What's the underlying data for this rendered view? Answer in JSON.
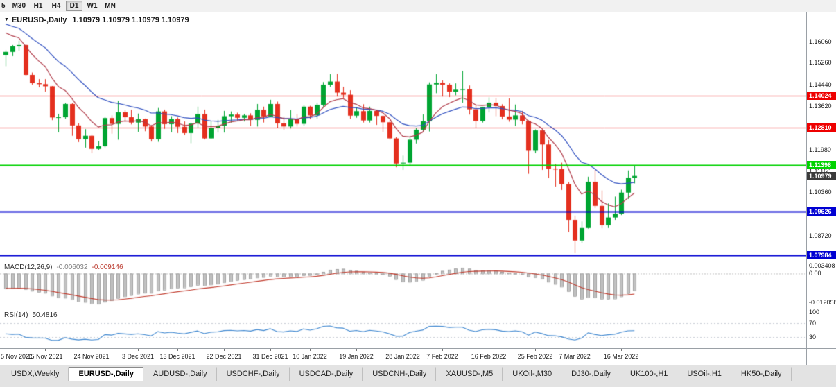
{
  "toolbar": {
    "timeframes": [
      {
        "label": "5",
        "active": false,
        "clipped": true
      },
      {
        "label": "M30",
        "active": false
      },
      {
        "label": "H1",
        "active": false
      },
      {
        "label": "H4",
        "active": false
      },
      {
        "label": "D1",
        "active": true
      },
      {
        "label": "W1",
        "active": false
      },
      {
        "label": "MN",
        "active": false
      }
    ]
  },
  "chart": {
    "title_marker": "▼",
    "symbol_title": "EURUSD-,Daily",
    "quotes": "1.10979  1.10979  1.10979  1.10979",
    "colors": {
      "candle_up": "#00A532",
      "candle_down": "#E4301F",
      "ma_fast_red": "#B03A48",
      "ma_slow_blue": "#2F4FC0",
      "level_red": "#EE0000",
      "level_green": "#00D200",
      "level_blue": "#0000D2",
      "current_price_badge": "#3A3A3A",
      "macd_histogram": "#C2C2C2",
      "macd_signal": "#C0392B",
      "rsi_line": "#3D86CF"
    }
  },
  "chart_data": {
    "type": "candlestick",
    "symbol": "EURUSD",
    "timeframe": "Daily",
    "current_price": 1.10979,
    "price_axis_labels": [
      {
        "text": "1.16060",
        "value": 1.1606
      },
      {
        "text": "1.15260",
        "value": 1.1526
      },
      {
        "text": "1.14440",
        "value": 1.1444
      },
      {
        "text": "1.13620",
        "value": 1.1362
      },
      {
        "text": "1.11980",
        "value": 1.1198
      },
      {
        "text": "1.11160",
        "value": 1.1116
      },
      {
        "text": "1.10360",
        "value": 1.1036
      },
      {
        "text": "1.08720",
        "value": 1.0872
      }
    ],
    "levels": [
      {
        "price": 1.14024,
        "label": "1.14024",
        "color": "#EE0000",
        "width": 1
      },
      {
        "price": 1.1281,
        "label": "1.12810",
        "color": "#EE0000",
        "width": 1
      },
      {
        "price": 1.11398,
        "label": "1.11398",
        "color": "#00D200",
        "width": 2
      },
      {
        "price": 1.09626,
        "label": "1.09626",
        "color": "#0000D2",
        "width": 2
      },
      {
        "price": 1.07984,
        "label": "1.07984",
        "color": "#0000D2",
        "width": 2
      }
    ],
    "current_price_label": "1.10979",
    "x_labels": [
      {
        "index": 0,
        "label": "5 Nov 2021"
      },
      {
        "index": 6,
        "label": "15 Nov 2021"
      },
      {
        "index": 13,
        "label": "24 Nov 2021"
      },
      {
        "index": 20,
        "label": "3 Dec 2021"
      },
      {
        "index": 26,
        "label": "13 Dec 2021"
      },
      {
        "index": 33,
        "label": "22 Dec 2021"
      },
      {
        "index": 40,
        "label": "31 Dec 2021"
      },
      {
        "index": 46,
        "label": "10 Jan 2022"
      },
      {
        "index": 53,
        "label": "19 Jan 2022"
      },
      {
        "index": 60,
        "label": "28 Jan 2022"
      },
      {
        "index": 66,
        "label": "7 Feb 2022"
      },
      {
        "index": 73,
        "label": "16 Feb 2022"
      },
      {
        "index": 80,
        "label": "25 Feb 2022"
      },
      {
        "index": 86,
        "label": "7 Mar 2022"
      },
      {
        "index": 93,
        "label": "16 Mar 2022"
      }
    ],
    "candles": [
      [
        1.1555,
        1.1573,
        1.1513,
        1.1567
      ],
      [
        1.1567,
        1.1593,
        1.1551,
        1.1588
      ],
      [
        1.1588,
        1.1609,
        1.1572,
        1.1593
      ],
      [
        1.1593,
        1.1596,
        1.1475,
        1.148
      ],
      [
        1.148,
        1.1489,
        1.1443,
        1.1449
      ],
      [
        1.1449,
        1.1464,
        1.1433,
        1.1445
      ],
      [
        1.1445,
        1.1464,
        1.1417,
        1.1437
      ],
      [
        1.1437,
        1.1438,
        1.1309,
        1.1319
      ],
      [
        1.1319,
        1.1333,
        1.1263,
        1.132
      ],
      [
        1.132,
        1.1374,
        1.1314,
        1.137
      ],
      [
        1.137,
        1.1373,
        1.125,
        1.1289
      ],
      [
        1.1289,
        1.1297,
        1.1226,
        1.1237
      ],
      [
        1.1237,
        1.1275,
        1.1205,
        1.125
      ],
      [
        1.125,
        1.1255,
        1.1184,
        1.12
      ],
      [
        1.12,
        1.123,
        1.1196,
        1.121
      ],
      [
        1.121,
        1.1322,
        1.1206,
        1.1317
      ],
      [
        1.1317,
        1.1327,
        1.1258,
        1.1295
      ],
      [
        1.1295,
        1.1382,
        1.1235,
        1.1339
      ],
      [
        1.1339,
        1.1347,
        1.1303,
        1.132
      ],
      [
        1.132,
        1.1348,
        1.1293,
        1.13
      ],
      [
        1.13,
        1.1334,
        1.1265,
        1.1313
      ],
      [
        1.1313,
        1.1315,
        1.1267,
        1.1285
      ],
      [
        1.1285,
        1.129,
        1.1228,
        1.1237
      ],
      [
        1.1237,
        1.1355,
        1.1227,
        1.1342
      ],
      [
        1.1342,
        1.1349,
        1.1276,
        1.1294
      ],
      [
        1.1294,
        1.1324,
        1.1263,
        1.1313
      ],
      [
        1.1313,
        1.1319,
        1.126,
        1.1284
      ],
      [
        1.1284,
        1.1304,
        1.1253,
        1.126
      ],
      [
        1.126,
        1.13,
        1.1222,
        1.1296
      ],
      [
        1.1296,
        1.136,
        1.128,
        1.1332
      ],
      [
        1.1332,
        1.1349,
        1.1236,
        1.124
      ],
      [
        1.124,
        1.1304,
        1.1238,
        1.128
      ],
      [
        1.128,
        1.131,
        1.1262,
        1.1288
      ],
      [
        1.1288,
        1.1344,
        1.1262,
        1.1324
      ],
      [
        1.1324,
        1.1342,
        1.13,
        1.133
      ],
      [
        1.133,
        1.1337,
        1.1308,
        1.1318
      ],
      [
        1.1318,
        1.1333,
        1.1304,
        1.1327
      ],
      [
        1.1327,
        1.1335,
        1.1287,
        1.131
      ],
      [
        1.131,
        1.137,
        1.1285,
        1.1348
      ],
      [
        1.1348,
        1.136,
        1.13,
        1.1323
      ],
      [
        1.1323,
        1.1386,
        1.1321,
        1.137
      ],
      [
        1.137,
        1.1379,
        1.1279,
        1.1297
      ],
      [
        1.1297,
        1.1323,
        1.1272,
        1.1285
      ],
      [
        1.1285,
        1.1347,
        1.1277,
        1.1312
      ],
      [
        1.1312,
        1.1332,
        1.1285,
        1.1295
      ],
      [
        1.1295,
        1.1365,
        1.1288,
        1.136
      ],
      [
        1.136,
        1.1363,
        1.1313,
        1.1327
      ],
      [
        1.1327,
        1.1375,
        1.1315,
        1.1367
      ],
      [
        1.1367,
        1.1453,
        1.136,
        1.1443
      ],
      [
        1.1443,
        1.1483,
        1.1435,
        1.1455
      ],
      [
        1.1455,
        1.1484,
        1.1398,
        1.1413
      ],
      [
        1.1413,
        1.1435,
        1.1393,
        1.1405
      ],
      [
        1.1405,
        1.1422,
        1.1314,
        1.1326
      ],
      [
        1.1326,
        1.1358,
        1.1318,
        1.1343
      ],
      [
        1.1343,
        1.1369,
        1.13,
        1.1308
      ],
      [
        1.1308,
        1.136,
        1.13,
        1.1344
      ],
      [
        1.1344,
        1.1349,
        1.1291,
        1.1325
      ],
      [
        1.1325,
        1.1327,
        1.1264,
        1.1301
      ],
      [
        1.1301,
        1.131,
        1.1235,
        1.124
      ],
      [
        1.124,
        1.1245,
        1.1131,
        1.1145
      ],
      [
        1.1145,
        1.1175,
        1.1121,
        1.1148
      ],
      [
        1.1148,
        1.1248,
        1.1135,
        1.1235
      ],
      [
        1.1235,
        1.1279,
        1.1221,
        1.1273
      ],
      [
        1.1273,
        1.1331,
        1.1266,
        1.1305
      ],
      [
        1.1305,
        1.1452,
        1.1266,
        1.1444
      ],
      [
        1.1444,
        1.1483,
        1.1411,
        1.145
      ],
      [
        1.145,
        1.1459,
        1.1398,
        1.1443
      ],
      [
        1.1443,
        1.1448,
        1.1396,
        1.1417
      ],
      [
        1.1417,
        1.1448,
        1.1403,
        1.1424
      ],
      [
        1.1424,
        1.1495,
        1.1375,
        1.1426
      ],
      [
        1.1426,
        1.144,
        1.133,
        1.135
      ],
      [
        1.135,
        1.1369,
        1.1278,
        1.1306
      ],
      [
        1.1306,
        1.1359,
        1.13,
        1.1358
      ],
      [
        1.1358,
        1.1395,
        1.1338,
        1.1375
      ],
      [
        1.1375,
        1.1393,
        1.1324,
        1.1362
      ],
      [
        1.1362,
        1.1369,
        1.1312,
        1.1323
      ],
      [
        1.1323,
        1.1391,
        1.1303,
        1.1311
      ],
      [
        1.1311,
        1.1368,
        1.1287,
        1.1327
      ],
      [
        1.1327,
        1.1344,
        1.1293,
        1.1306
      ],
      [
        1.1306,
        1.1309,
        1.1106,
        1.1193
      ],
      [
        1.1193,
        1.1274,
        1.1184,
        1.127
      ],
      [
        1.127,
        1.1272,
        1.1121,
        1.1217
      ],
      [
        1.1217,
        1.1234,
        1.109,
        1.1125
      ],
      [
        1.1125,
        1.1143,
        1.1058,
        1.1124
      ],
      [
        1.1124,
        1.1148,
        1.1045,
        1.1067
      ],
      [
        1.1067,
        1.1075,
        1.0886,
        1.0932
      ],
      [
        1.0932,
        1.0948,
        1.0806,
        1.0854
      ],
      [
        1.0854,
        1.0926,
        1.0845,
        1.0901
      ],
      [
        1.0901,
        1.1095,
        1.0899,
        1.1076
      ],
      [
        1.1076,
        1.1121,
        1.0977,
        1.0985
      ],
      [
        1.0985,
        1.1043,
        1.09,
        1.0912
      ],
      [
        1.0912,
        1.0994,
        1.0901,
        1.0941
      ],
      [
        1.0941,
        1.102,
        1.0932,
        1.0955
      ],
      [
        1.0955,
        1.1046,
        1.095,
        1.1035
      ],
      [
        1.1035,
        1.1119,
        1.1011,
        1.1091
      ],
      [
        1.1091,
        1.1139,
        1.107,
        1.1098
      ]
    ]
  },
  "macd": {
    "label": "MACD(12,26,9)",
    "value_main": "-0.006032",
    "value_signal": "-0.009146",
    "params": {
      "fast": 12,
      "slow": 26,
      "signal": 9
    },
    "axis_labels": [
      {
        "text": "0.003408",
        "value": 0.003408
      },
      {
        "text": "0.00",
        "value": 0
      },
      {
        "text": "-0.012058",
        "value": -0.012058
      }
    ]
  },
  "rsi": {
    "label": "RSI(14)",
    "value": "50.4816",
    "period": 14,
    "levels": [
      70,
      30
    ],
    "axis_labels": [
      {
        "text": "100",
        "value": 100
      },
      {
        "text": "70",
        "value": 70
      },
      {
        "text": "30",
        "value": 30
      }
    ]
  },
  "tabs": [
    {
      "label": "USDX,Weekly",
      "active": false
    },
    {
      "label": "EURUSD-,Daily",
      "active": true
    },
    {
      "label": "AUDUSD-,Daily",
      "active": false
    },
    {
      "label": "USDCHF-,Daily",
      "active": false
    },
    {
      "label": "USDCAD-,Daily",
      "active": false
    },
    {
      "label": "USDCNH-,Daily",
      "active": false
    },
    {
      "label": "XAUUSD-,M5",
      "active": false
    },
    {
      "label": "UKOil-,M30",
      "active": false
    },
    {
      "label": "DJ30-,Daily",
      "active": false
    },
    {
      "label": "UK100-,H1",
      "active": false
    },
    {
      "label": "USOil-,H1",
      "active": false
    },
    {
      "label": "HK50-,Daily",
      "active": false
    }
  ]
}
